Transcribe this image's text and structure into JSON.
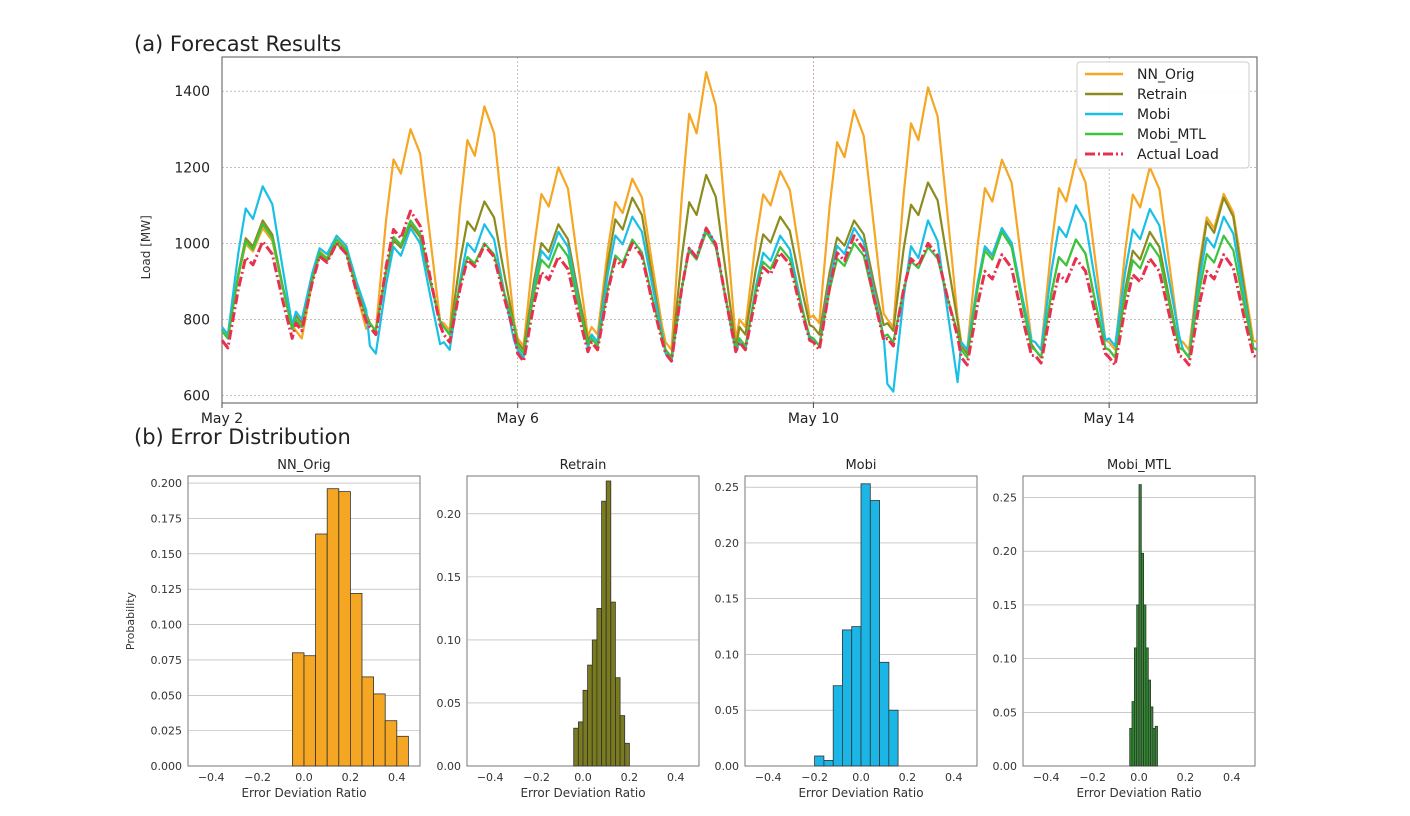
{
  "headings": {
    "panel_a": "(a)  Forecast Results",
    "panel_b": "(b)  Error Distribution"
  },
  "colors": {
    "NN_Orig": "#f5a623",
    "Retrain": "#8c8c1e",
    "Mobi": "#19c0e6",
    "Mobi_MTL": "#3cc43c",
    "Actual Load": "#e8304f",
    "hist_NN_Orig": "#f5a623",
    "hist_Retrain": "#7a7a1e",
    "hist_Mobi": "#1bb6e6",
    "hist_Mobi_MTL": "#2f8f2f"
  },
  "chart_data": [
    {
      "type": "line",
      "title": "",
      "xlabel": "",
      "ylabel": "Load [MW]",
      "x_ticks": [
        "May 2",
        "May 6",
        "May 10",
        "May 14"
      ],
      "x_range_days": [
        2,
        16
      ],
      "ylim": [
        580,
        1490
      ],
      "y_ticks": [
        600,
        800,
        1000,
        1200,
        1400
      ],
      "grid": true,
      "legend_position": "top-right",
      "legend": [
        "NN_Orig",
        "Retrain",
        "Mobi",
        "Mobi_MTL",
        "Actual Load"
      ],
      "series": [
        {
          "name": "Actual Load",
          "style": "dashdot",
          "peaks": [
            1005,
            1000,
            1085,
            995,
            965,
            1000,
            1040,
            975,
            1020,
            1000,
            970,
            960,
            960,
            970
          ],
          "troughs": [
            725,
            770,
            760,
            740,
            690,
            720,
            690,
            720,
            720,
            730,
            680,
            685,
            680,
            680,
            680
          ]
        },
        {
          "name": "Mobi_MTL",
          "style": "solid",
          "peaks": [
            1050,
            1010,
            1060,
            1000,
            1000,
            1010,
            1030,
            990,
            1000,
            990,
            1030,
            1010,
            1000,
            1020
          ],
          "troughs": [
            750,
            780,
            770,
            760,
            710,
            730,
            700,
            730,
            730,
            740,
            700,
            700,
            700,
            700,
            700
          ]
        },
        {
          "name": "Mobi",
          "style": "solid",
          "peaks": [
            1150,
            1020,
            1040,
            1050,
            1030,
            1070,
            1040,
            1020,
            1040,
            1060,
            1040,
            1100,
            1090,
            1070
          ],
          "troughs": [
            760,
            800,
            710,
            720,
            700,
            740,
            690,
            720,
            730,
            610,
            720,
            720,
            730,
            700,
            700
          ]
        },
        {
          "name": "Retrain",
          "style": "solid",
          "peaks": [
            1060,
            1000,
            1050,
            1110,
            1050,
            1120,
            1180,
            1070,
            1060,
            1160,
            1040,
            1010,
            1030,
            1120
          ],
          "troughs": [
            750,
            790,
            770,
            760,
            720,
            740,
            700,
            760,
            760,
            770,
            710,
            700,
            700,
            700,
            700
          ]
        },
        {
          "name": "NN_Orig",
          "style": "solid",
          "peaks": [
            1040,
            1020,
            1300,
            1360,
            1200,
            1170,
            1450,
            1190,
            1350,
            1410,
            1220,
            1220,
            1200,
            1130
          ],
          "troughs": [
            760,
            750,
            770,
            770,
            730,
            760,
            720,
            780,
            790,
            780,
            720,
            720,
            720,
            720,
            720
          ]
        }
      ]
    },
    {
      "type": "bar",
      "title": "NN_Orig",
      "xlabel": "Error Deviation Ratio",
      "ylabel": "Probability",
      "xlim": [
        -0.5,
        0.5
      ],
      "x_ticks": [
        "−0.4",
        "−0.2",
        "0.0",
        "0.2",
        "0.4"
      ],
      "ylim": [
        0,
        0.205
      ],
      "y_ticks": [
        "0.000",
        "0.025",
        "0.050",
        "0.075",
        "0.100",
        "0.125",
        "0.150",
        "0.175",
        "0.200"
      ],
      "bin_edges": [
        -0.05,
        0.0,
        0.05,
        0.1,
        0.15,
        0.2,
        0.25,
        0.3,
        0.35,
        0.4,
        0.45
      ],
      "values": [
        0.08,
        0.078,
        0.164,
        0.196,
        0.194,
        0.122,
        0.063,
        0.051,
        0.032,
        0.021
      ]
    },
    {
      "type": "bar",
      "title": "Retrain",
      "xlabel": "Error Deviation Ratio",
      "ylabel": "",
      "xlim": [
        -0.5,
        0.5
      ],
      "x_ticks": [
        "−0.4",
        "−0.2",
        "0.0",
        "0.2",
        "0.4"
      ],
      "ylim": [
        0,
        0.23
      ],
      "y_ticks": [
        "0.00",
        "0.05",
        "0.10",
        "0.15",
        "0.20"
      ],
      "bin_edges": [
        -0.04,
        -0.02,
        0.0,
        0.02,
        0.04,
        0.06,
        0.08,
        0.1,
        0.12,
        0.14,
        0.16,
        0.18,
        0.2
      ],
      "values": [
        0.03,
        0.035,
        0.06,
        0.08,
        0.1,
        0.125,
        0.21,
        0.226,
        0.13,
        0.07,
        0.04,
        0.018
      ]
    },
    {
      "type": "bar",
      "title": "Mobi",
      "xlabel": "Error Deviation Ratio",
      "ylabel": "",
      "xlim": [
        -0.5,
        0.5
      ],
      "x_ticks": [
        "−0.4",
        "−0.2",
        "0.0",
        "0.2",
        "0.4"
      ],
      "ylim": [
        0,
        0.26
      ],
      "y_ticks": [
        "0.00",
        "0.05",
        "0.10",
        "0.15",
        "0.20",
        "0.25"
      ],
      "bin_edges": [
        -0.2,
        -0.16,
        -0.12,
        -0.08,
        -0.04,
        0.0,
        0.04,
        0.08,
        0.12,
        0.16,
        0.2
      ],
      "values": [
        0.009,
        0.005,
        0.072,
        0.122,
        0.125,
        0.253,
        0.238,
        0.093,
        0.05,
        0.0
      ]
    },
    {
      "type": "bar",
      "title": "Mobi_MTL",
      "xlabel": "Error Deviation Ratio",
      "ylabel": "",
      "xlim": [
        -0.5,
        0.5
      ],
      "x_ticks": [
        "−0.4",
        "−0.2",
        "0.0",
        "0.2",
        "0.4"
      ],
      "ylim": [
        0,
        0.27
      ],
      "y_ticks": [
        "0.00",
        "0.05",
        "0.10",
        "0.15",
        "0.20",
        "0.25"
      ],
      "bin_edges": [
        -0.04,
        -0.03,
        -0.02,
        -0.01,
        0.0,
        0.01,
        0.02,
        0.03,
        0.04,
        0.05,
        0.06,
        0.07,
        0.08,
        0.09
      ],
      "values": [
        0.035,
        0.06,
        0.11,
        0.15,
        0.262,
        0.198,
        0.15,
        0.11,
        0.08,
        0.055,
        0.035,
        0.037,
        0.0
      ]
    }
  ]
}
